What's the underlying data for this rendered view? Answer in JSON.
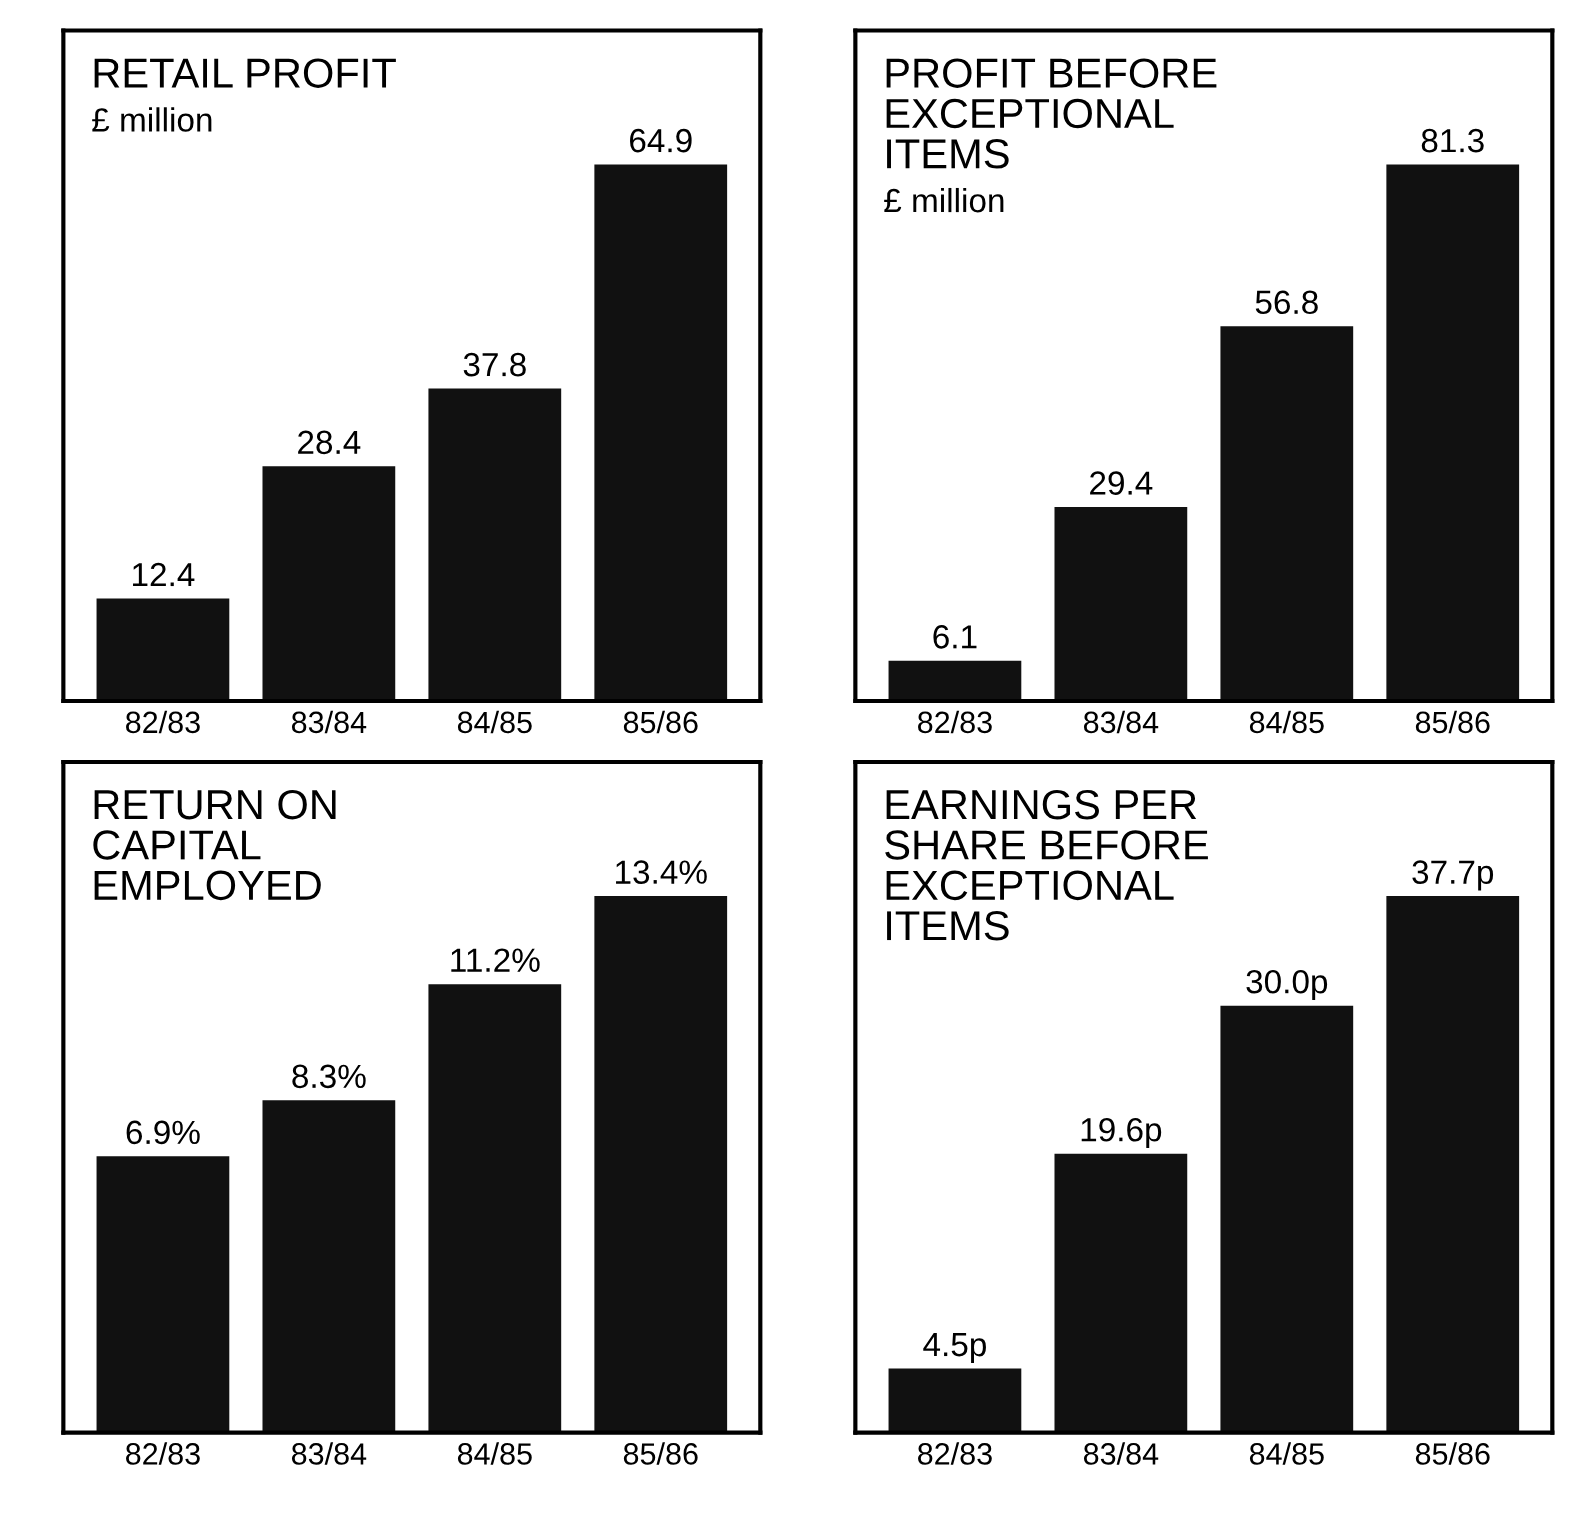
{
  "chart_data": [
    {
      "type": "bar",
      "title": "RETAIL PROFIT",
      "subtitle": "£ million",
      "categories": [
        "82/83",
        "83/84",
        "84/85",
        "85/86"
      ],
      "values": [
        12.4,
        28.4,
        37.8,
        64.9
      ],
      "color": "#111111",
      "data_labels": true,
      "grid": false,
      "legend": false
    },
    {
      "type": "bar",
      "title": "PROFIT BEFORE\nEXCEPTIONAL\nITEMS",
      "subtitle": "£ million",
      "categories": [
        "82/83",
        "83/84",
        "84/85",
        "85/86"
      ],
      "values": [
        6.1,
        29.4,
        56.8,
        81.3
      ],
      "color": "#111111",
      "data_labels": true,
      "grid": false,
      "legend": false
    },
    {
      "type": "bar",
      "title": "RETURN ON\nCAPITAL\nEMPLOYED",
      "categories": [
        "82/83",
        "83/84",
        "84/85",
        "85/86"
      ],
      "values": [
        6.9,
        8.3,
        11.2,
        13.4
      ],
      "value_labels": [
        "6.9%",
        "8.3%",
        "11.2%",
        "13.4%"
      ],
      "color": "#111111",
      "grid": false,
      "legend": false
    },
    {
      "type": "bar",
      "title": "EARNINGS PER\nSHARE BEFORE\nEXCEPTIONAL\nITEMS",
      "categories": [
        "82/83",
        "83/84",
        "84/85",
        "85/86"
      ],
      "values": [
        4.5,
        19.6,
        30.0,
        37.7
      ],
      "value_labels": [
        "4.5p",
        "19.6p",
        "30.0p",
        "37.7p"
      ],
      "color": "#111111",
      "grid": false,
      "legend": false
    }
  ]
}
